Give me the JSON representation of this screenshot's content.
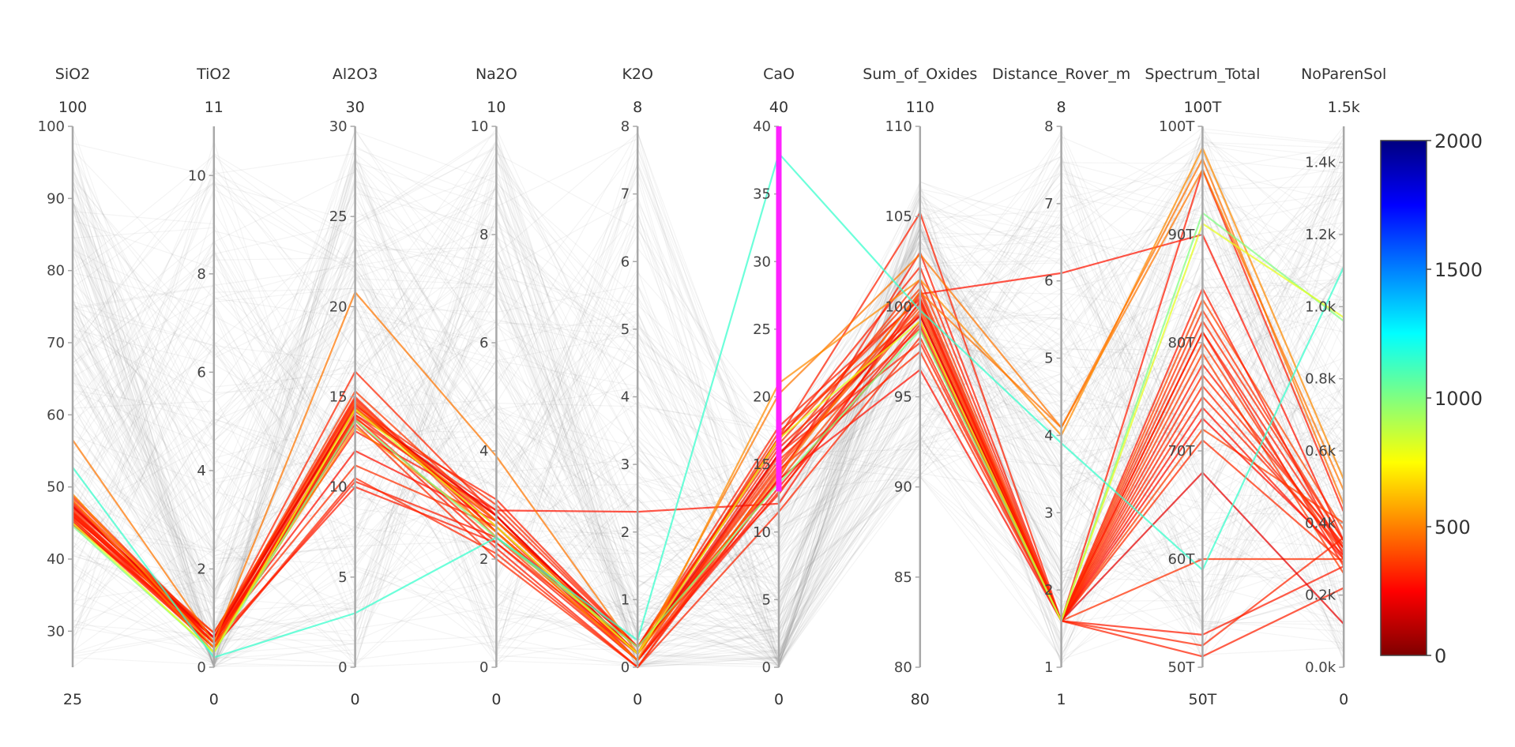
{
  "chart_data": {
    "type": "parallel_coordinates",
    "axes": [
      {
        "name": "SiO2",
        "range": [
          25,
          100
        ],
        "min_label": "25",
        "max_label": "100",
        "ticks": [
          {
            "v": 30,
            "label": "30"
          },
          {
            "v": 40,
            "label": "40"
          },
          {
            "v": 50,
            "label": "50"
          },
          {
            "v": 60,
            "label": "60"
          },
          {
            "v": 70,
            "label": "70"
          },
          {
            "v": 80,
            "label": "80"
          },
          {
            "v": 90,
            "label": "90"
          },
          {
            "v": 100,
            "label": "100"
          }
        ]
      },
      {
        "name": "TiO2",
        "range": [
          0,
          11
        ],
        "min_label": "0",
        "max_label": "11",
        "ticks": [
          {
            "v": 0,
            "label": "0"
          },
          {
            "v": 2,
            "label": "2"
          },
          {
            "v": 4,
            "label": "4"
          },
          {
            "v": 6,
            "label": "6"
          },
          {
            "v": 8,
            "label": "8"
          },
          {
            "v": 10,
            "label": "10"
          }
        ]
      },
      {
        "name": "Al2O3",
        "range": [
          0,
          30
        ],
        "min_label": "0",
        "max_label": "30",
        "ticks": [
          {
            "v": 0,
            "label": "0"
          },
          {
            "v": 5,
            "label": "5"
          },
          {
            "v": 10,
            "label": "10"
          },
          {
            "v": 15,
            "label": "15"
          },
          {
            "v": 20,
            "label": "20"
          },
          {
            "v": 25,
            "label": "25"
          },
          {
            "v": 30,
            "label": "30"
          }
        ]
      },
      {
        "name": "Na2O",
        "range": [
          0,
          10
        ],
        "min_label": "0",
        "max_label": "10",
        "ticks": [
          {
            "v": 0,
            "label": "0"
          },
          {
            "v": 2,
            "label": "2"
          },
          {
            "v": 4,
            "label": "4"
          },
          {
            "v": 6,
            "label": "6"
          },
          {
            "v": 8,
            "label": "8"
          },
          {
            "v": 10,
            "label": "10"
          }
        ]
      },
      {
        "name": "K2O",
        "range": [
          0,
          8
        ],
        "min_label": "0",
        "max_label": "8",
        "ticks": [
          {
            "v": 0,
            "label": "0"
          },
          {
            "v": 1,
            "label": "1"
          },
          {
            "v": 2,
            "label": "2"
          },
          {
            "v": 3,
            "label": "3"
          },
          {
            "v": 4,
            "label": "4"
          },
          {
            "v": 5,
            "label": "5"
          },
          {
            "v": 6,
            "label": "6"
          },
          {
            "v": 7,
            "label": "7"
          },
          {
            "v": 8,
            "label": "8"
          }
        ]
      },
      {
        "name": "CaO",
        "range": [
          0,
          40
        ],
        "min_label": "0",
        "max_label": "40",
        "ticks": [
          {
            "v": 0,
            "label": "0"
          },
          {
            "v": 5,
            "label": "5"
          },
          {
            "v": 10,
            "label": "10"
          },
          {
            "v": 15,
            "label": "15"
          },
          {
            "v": 20,
            "label": "20"
          },
          {
            "v": 25,
            "label": "25"
          },
          {
            "v": 30,
            "label": "30"
          },
          {
            "v": 35,
            "label": "35"
          },
          {
            "v": 40,
            "label": "40"
          }
        ],
        "constraint_range": [
          13,
          40
        ]
      },
      {
        "name": "Sum_of_Oxides",
        "range": [
          80,
          110
        ],
        "min_label": "80",
        "max_label": "110",
        "ticks": [
          {
            "v": 80,
            "label": "80"
          },
          {
            "v": 85,
            "label": "85"
          },
          {
            "v": 90,
            "label": "90"
          },
          {
            "v": 95,
            "label": "95"
          },
          {
            "v": 100,
            "label": "100"
          },
          {
            "v": 105,
            "label": "105"
          },
          {
            "v": 110,
            "label": "110"
          }
        ]
      },
      {
        "name": "Distance_Rover_m",
        "range": [
          1,
          8
        ],
        "min_label": "1",
        "max_label": "8",
        "ticks": [
          {
            "v": 1,
            "label": "1"
          },
          {
            "v": 2,
            "label": "2"
          },
          {
            "v": 3,
            "label": "3"
          },
          {
            "v": 4,
            "label": "4"
          },
          {
            "v": 5,
            "label": "5"
          },
          {
            "v": 6,
            "label": "6"
          },
          {
            "v": 7,
            "label": "7"
          },
          {
            "v": 8,
            "label": "8"
          }
        ]
      },
      {
        "name": "Spectrum_Total",
        "range": [
          50,
          100
        ],
        "min_label": "50T",
        "max_label": "100T",
        "ticks": [
          {
            "v": 50,
            "label": "50T"
          },
          {
            "v": 60,
            "label": "60T"
          },
          {
            "v": 70,
            "label": "70T"
          },
          {
            "v": 80,
            "label": "80T"
          },
          {
            "v": 90,
            "label": "90T"
          },
          {
            "v": 100,
            "label": "100T"
          }
        ]
      },
      {
        "name": "NoParenSol",
        "range": [
          0,
          1500
        ],
        "min_label": "0",
        "max_label": "1.5k",
        "ticks": [
          {
            "v": 0,
            "label": "0.0k"
          },
          {
            "v": 200,
            "label": "0.2k"
          },
          {
            "v": 400,
            "label": "0.4k"
          },
          {
            "v": 600,
            "label": "0.6k"
          },
          {
            "v": 800,
            "label": "0.8k"
          },
          {
            "v": 1000,
            "label": "1.0k"
          },
          {
            "v": 1200,
            "label": "1.2k"
          },
          {
            "v": 1400,
            "label": "1.4k"
          }
        ]
      }
    ],
    "colorscale": {
      "name": "Jet (reversed)",
      "range": [
        0,
        2000
      ],
      "ticks": [
        {
          "v": 0,
          "label": "0"
        },
        {
          "v": 500,
          "label": "500"
        },
        {
          "v": 1000,
          "label": "1000"
        },
        {
          "v": 1500,
          "label": "1500"
        },
        {
          "v": 2000,
          "label": "2000"
        }
      ],
      "stops": [
        "#7f0000",
        "#ff0000",
        "#ff8000",
        "#ffff00",
        "#80ff80",
        "#00ffff",
        "#0080ff",
        "#0000ff",
        "#00007f"
      ]
    },
    "highlighted_lines": [
      {
        "c": 330,
        "v": [
          48.5,
          0.6,
          14.5,
          3.0,
          0.3,
          17.0,
          100.5,
          1.6,
          82.0,
          350
        ]
      },
      {
        "c": 300,
        "v": [
          47.8,
          0.5,
          14.0,
          2.7,
          0.2,
          16.2,
          99.5,
          1.6,
          78.0,
          330
        ]
      },
      {
        "c": 350,
        "v": [
          46.5,
          0.4,
          13.8,
          2.8,
          0.2,
          15.6,
          101.5,
          1.6,
          80.0,
          300
        ]
      },
      {
        "c": 320,
        "v": [
          46.0,
          0.6,
          15.0,
          2.5,
          0.1,
          14.4,
          100.8,
          1.6,
          76.0,
          320
        ]
      },
      {
        "c": 380,
        "v": [
          45.5,
          0.5,
          14.8,
          2.4,
          0.1,
          13.8,
          99.8,
          1.6,
          84.0,
          380
        ]
      },
      {
        "c": 310,
        "v": [
          47.0,
          0.7,
          14.2,
          2.9,
          0.3,
          16.8,
          102.2,
          1.6,
          81.0,
          280
        ]
      },
      {
        "c": 340,
        "v": [
          46.8,
          0.5,
          13.9,
          2.3,
          0.2,
          15.0,
          100.2,
          1.6,
          83.0,
          350
        ]
      },
      {
        "c": 290,
        "v": [
          45.2,
          0.4,
          14.6,
          2.6,
          0.1,
          13.3,
          99.2,
          1.6,
          74.0,
          300
        ]
      },
      {
        "c": 360,
        "v": [
          48.0,
          0.6,
          15.3,
          2.7,
          0.3,
          16.5,
          101.0,
          1.6,
          79.0,
          260
        ]
      },
      {
        "c": 330,
        "v": [
          46.3,
          0.6,
          14.3,
          2.8,
          0.2,
          15.3,
          98.8,
          1.6,
          77.0,
          340
        ]
      },
      {
        "c": 300,
        "v": [
          47.4,
          0.5,
          13.7,
          2.2,
          0.0,
          14.0,
          103.0,
          1.6,
          85.0,
          310
        ]
      },
      {
        "c": 370,
        "v": [
          45.8,
          0.7,
          14.7,
          2.5,
          0.2,
          14.8,
          100.0,
          1.6,
          72.0,
          400
        ]
      },
      {
        "c": 320,
        "v": [
          47.2,
          0.6,
          16.4,
          2.8,
          0.1,
          15.8,
          98.0,
          1.6,
          75.0,
          330
        ]
      },
      {
        "c": 330,
        "v": [
          46.6,
          0.5,
          13.5,
          2.0,
          0.0,
          14.6,
          97.5,
          1.6,
          71.0,
          290
        ]
      },
      {
        "c": 280,
        "v": [
          44.8,
          0.6,
          12.0,
          2.7,
          0.3,
          13.9,
          96.5,
          1.6,
          73.0,
          310
        ]
      },
      {
        "c": 340,
        "v": [
          48.8,
          0.6,
          11.2,
          2.6,
          0.2,
          17.4,
          99.6,
          1.6,
          60.0,
          300
        ]
      },
      {
        "c": 300,
        "v": [
          46.2,
          0.4,
          10.3,
          2.4,
          0.3,
          12.8,
          100.3,
          1.6,
          96.0,
          430
        ]
      },
      {
        "c": 300,
        "v": [
          45.1,
          0.5,
          10.0,
          2.3,
          0.1,
          13.0,
          99.0,
          1.6,
          53.0,
          280
        ]
      },
      {
        "c": 320,
        "v": [
          45.6,
          0.4,
          10.5,
          2.1,
          0.0,
          11.5,
          98.3,
          1.6,
          52.0,
          360
        ]
      },
      {
        "c": 310,
        "v": [
          47.6,
          0.5,
          14.0,
          3.1,
          0.3,
          17.8,
          100.4,
          1.6,
          51.0,
          220
        ]
      },
      {
        "c": 290,
        "v": [
          45.9,
          0.6,
          13.1,
          2.9,
          2.3,
          12.1,
          100.7,
          6.1,
          90.0,
          350
        ]
      },
      {
        "c": 310,
        "v": [
          46.4,
          0.6,
          14.9,
          2.5,
          0.2,
          17.0,
          105.2,
          1.6,
          81.0,
          330
        ]
      },
      {
        "c": 200,
        "v": [
          47.3,
          0.6,
          14.4,
          2.8,
          0.2,
          15.8,
          99.5,
          1.6,
          68.0,
          120
        ]
      },
      {
        "c": 480,
        "v": [
          56.5,
          0.5,
          20.8,
          3.9,
          0.2,
          20.2,
          102.9,
          4.1,
          96.0,
          490
        ]
      },
      {
        "c": 520,
        "v": [
          49.0,
          0.4,
          13.3,
          2.5,
          0.1,
          21.0,
          101.5,
          4.0,
          98.0,
          520
        ]
      },
      {
        "c": 470,
        "v": [
          48.2,
          0.3,
          14.4,
          2.7,
          0.2,
          14.2,
          100.8,
          4.1,
          97.0,
          450
        ]
      },
      {
        "c": 1000,
        "v": [
          44.6,
          0.3,
          13.7,
          2.4,
          0.3,
          13.6,
          98.7,
          1.6,
          92.0,
          960
        ]
      },
      {
        "c": 800,
        "v": [
          45.0,
          0.3,
          14.3,
          2.6,
          0.2,
          16.9,
          99.2,
          1.6,
          91.0,
          970
        ]
      },
      {
        "c": 1150,
        "v": [
          52.7,
          0.2,
          3.0,
          2.4,
          0.4,
          38.0,
          99.8,
          3.9,
          59.0,
          1110
        ]
      }
    ]
  }
}
